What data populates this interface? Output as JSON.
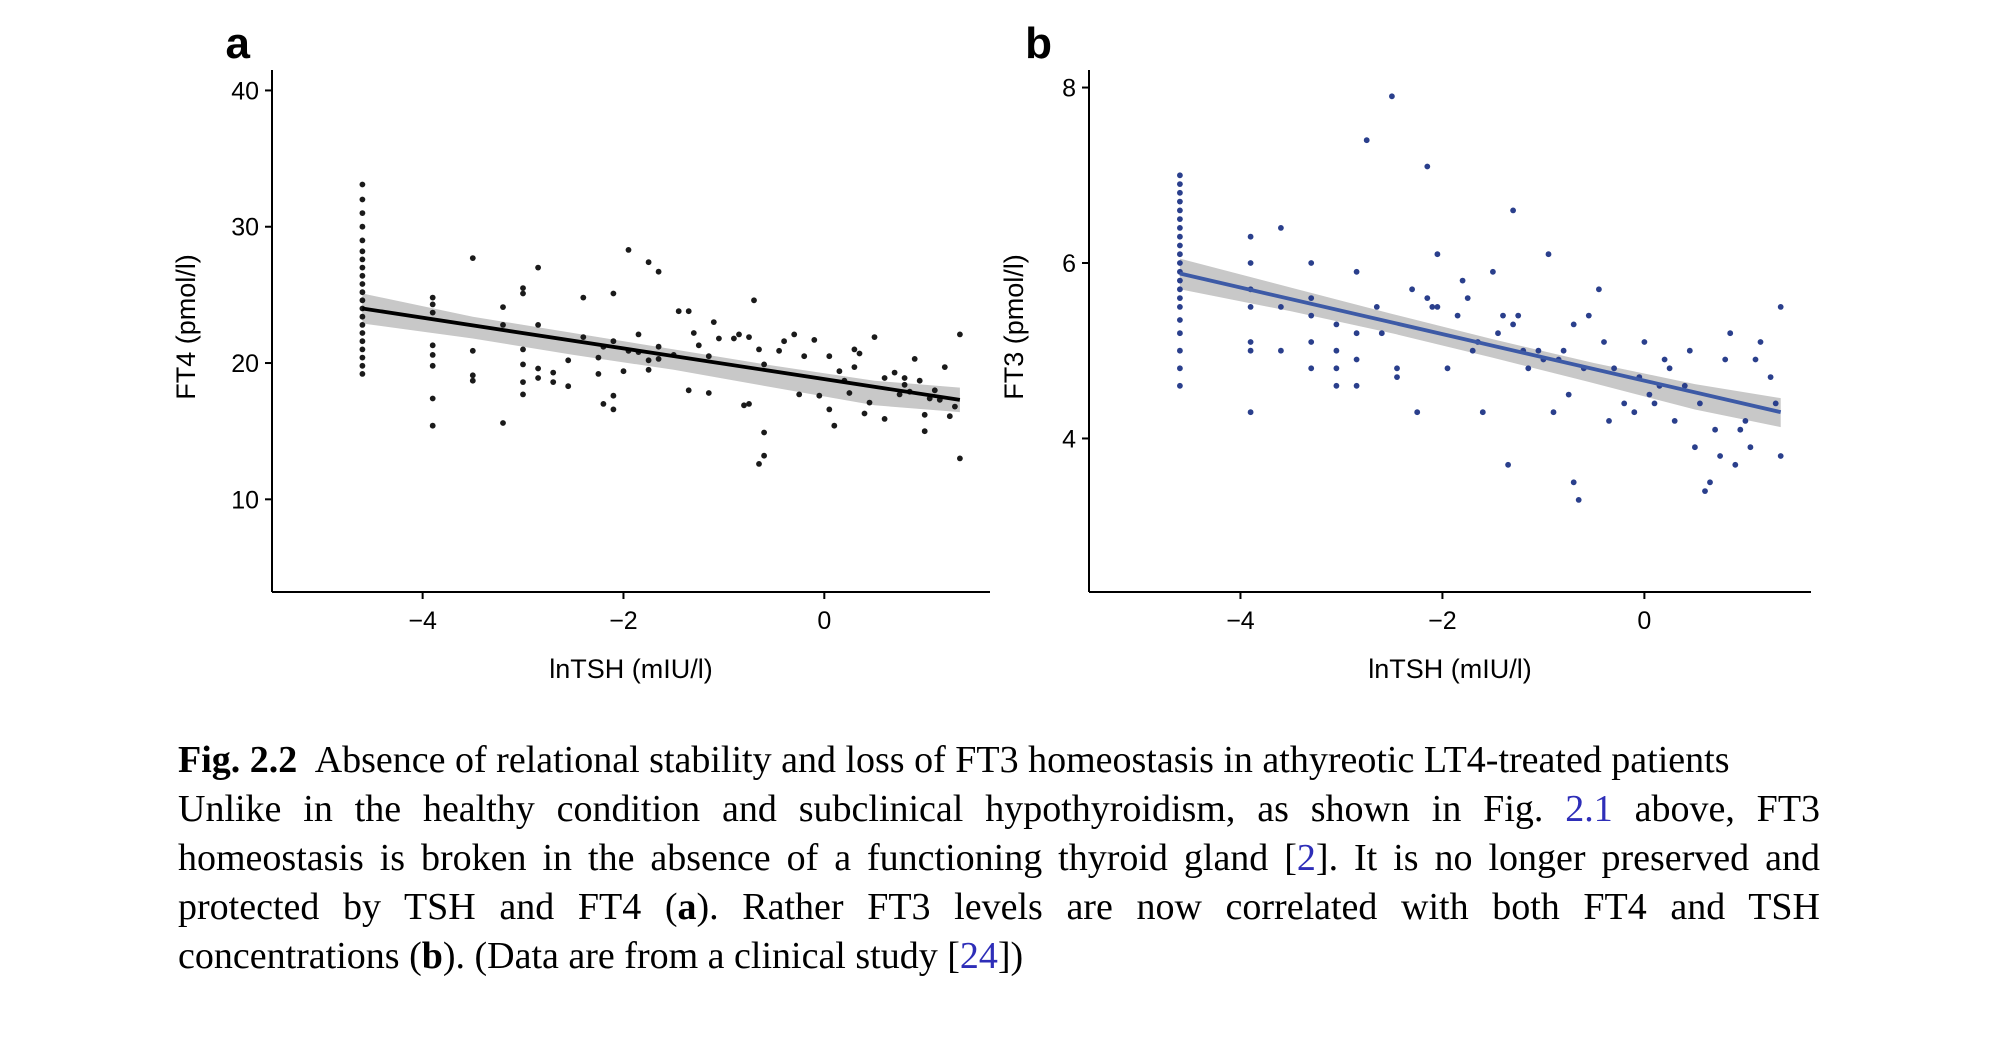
{
  "chart_data": [
    {
      "type": "scatter",
      "panel_label": "a",
      "xlabel": "lnTSH (mIU/l)",
      "ylabel": "FT4 (pmol/l)",
      "xlim": [
        -5.5,
        1.65
      ],
      "ylim": [
        3.2,
        41.5
      ],
      "xticks": [
        -4,
        -2,
        0
      ],
      "yticks": [
        10,
        20,
        30,
        40
      ],
      "xtick_labels": [
        "−4",
        "−2",
        "0"
      ],
      "ytick_labels": [
        "10",
        "20",
        "30",
        "40"
      ],
      "grid": false,
      "legend": "none",
      "point_color": "#1a1a1a",
      "line_color": "#000000",
      "band_color": "#c8c8c8",
      "trend_line": {
        "x": [
          -4.6,
          1.35
        ],
        "y": [
          24.0,
          17.3
        ]
      },
      "confidence_band": {
        "x": [
          -4.6,
          -3.5,
          -2.5,
          -1.5,
          -0.5,
          0.5,
          1.35
        ],
        "upper": [
          25.1,
          23.4,
          22.2,
          21.0,
          19.8,
          18.7,
          18.2
        ],
        "lower": [
          22.9,
          21.8,
          20.6,
          19.5,
          18.2,
          16.9,
          16.4
        ]
      },
      "points": [
        [
          -4.6,
          19.2
        ],
        [
          -4.6,
          19.8
        ],
        [
          -4.6,
          20.4
        ],
        [
          -4.6,
          21.0
        ],
        [
          -4.6,
          21.6
        ],
        [
          -4.6,
          22.2
        ],
        [
          -4.6,
          22.8
        ],
        [
          -4.6,
          23.4
        ],
        [
          -4.6,
          24.0
        ],
        [
          -4.6,
          24.6
        ],
        [
          -4.6,
          25.2
        ],
        [
          -4.6,
          25.8
        ],
        [
          -4.6,
          26.4
        ],
        [
          -4.6,
          27.0
        ],
        [
          -4.6,
          27.6
        ],
        [
          -4.6,
          28.2
        ],
        [
          -4.6,
          29.0
        ],
        [
          -4.6,
          30.0
        ],
        [
          -4.6,
          31.0
        ],
        [
          -4.6,
          32.0
        ],
        [
          -4.6,
          33.1
        ],
        [
          -3.9,
          15.4
        ],
        [
          -3.9,
          17.4
        ],
        [
          -3.9,
          19.8
        ],
        [
          -3.9,
          20.6
        ],
        [
          -3.9,
          21.3
        ],
        [
          -3.9,
          23.7
        ],
        [
          -3.9,
          24.3
        ],
        [
          -3.9,
          24.8
        ],
        [
          -3.5,
          27.7
        ],
        [
          -3.5,
          18.7
        ],
        [
          -3.5,
          19.1
        ],
        [
          -3.5,
          20.9
        ],
        [
          -3.2,
          15.6
        ],
        [
          -3.2,
          22.8
        ],
        [
          -3.2,
          24.1
        ],
        [
          -3.0,
          25.5
        ],
        [
          -3.0,
          25.1
        ],
        [
          -3.0,
          21.0
        ],
        [
          -3.0,
          19.9
        ],
        [
          -3.0,
          18.6
        ],
        [
          -3.0,
          17.7
        ],
        [
          -2.85,
          27.0
        ],
        [
          -2.85,
          22.8
        ],
        [
          -2.85,
          19.6
        ],
        [
          -2.85,
          18.9
        ],
        [
          -2.7,
          19.3
        ],
        [
          -2.7,
          18.6
        ],
        [
          -2.55,
          20.2
        ],
        [
          -2.55,
          18.3
        ],
        [
          -2.4,
          21.9
        ],
        [
          -2.4,
          24.8
        ],
        [
          -2.25,
          20.4
        ],
        [
          -2.25,
          19.2
        ],
        [
          -2.2,
          17.0
        ],
        [
          -2.2,
          21.2
        ],
        [
          -2.1,
          25.1
        ],
        [
          -2.1,
          16.6
        ],
        [
          -2.1,
          21.6
        ],
        [
          -2.1,
          17.6
        ],
        [
          -2.0,
          19.4
        ],
        [
          -1.95,
          28.3
        ],
        [
          -1.95,
          20.9
        ],
        [
          -1.85,
          20.8
        ],
        [
          -1.85,
          22.1
        ],
        [
          -1.75,
          27.4
        ],
        [
          -1.75,
          20.2
        ],
        [
          -1.75,
          19.5
        ],
        [
          -1.65,
          26.7
        ],
        [
          -1.65,
          21.2
        ],
        [
          -1.65,
          20.3
        ],
        [
          -1.5,
          20.6
        ],
        [
          -1.45,
          23.8
        ],
        [
          -1.35,
          23.8
        ],
        [
          -1.35,
          18.0
        ],
        [
          -1.3,
          22.2
        ],
        [
          -1.25,
          21.3
        ],
        [
          -1.15,
          20.5
        ],
        [
          -1.15,
          17.8
        ],
        [
          -1.1,
          23.0
        ],
        [
          -1.05,
          21.8
        ],
        [
          -0.9,
          21.8
        ],
        [
          -0.85,
          22.1
        ],
        [
          -0.8,
          16.9
        ],
        [
          -0.75,
          17.0
        ],
        [
          -0.75,
          21.9
        ],
        [
          -0.7,
          24.6
        ],
        [
          -0.65,
          21.0
        ],
        [
          -0.6,
          19.9
        ],
        [
          -0.6,
          14.9
        ],
        [
          -0.6,
          13.2
        ],
        [
          -0.65,
          12.6
        ],
        [
          -0.45,
          20.9
        ],
        [
          -0.4,
          21.6
        ],
        [
          -0.3,
          22.1
        ],
        [
          -0.25,
          17.7
        ],
        [
          -0.2,
          20.5
        ],
        [
          -0.1,
          21.7
        ],
        [
          -0.05,
          17.6
        ],
        [
          0.05,
          20.5
        ],
        [
          0.05,
          16.6
        ],
        [
          0.1,
          15.4
        ],
        [
          0.15,
          19.4
        ],
        [
          0.2,
          18.7
        ],
        [
          0.25,
          17.8
        ],
        [
          0.3,
          19.7
        ],
        [
          0.3,
          21.0
        ],
        [
          0.35,
          20.7
        ],
        [
          0.4,
          16.3
        ],
        [
          0.45,
          17.1
        ],
        [
          0.5,
          21.9
        ],
        [
          0.6,
          18.9
        ],
        [
          0.6,
          15.9
        ],
        [
          0.7,
          19.3
        ],
        [
          0.75,
          17.7
        ],
        [
          0.8,
          18.9
        ],
        [
          0.8,
          18.4
        ],
        [
          0.85,
          17.9
        ],
        [
          0.9,
          20.3
        ],
        [
          0.95,
          18.7
        ],
        [
          1.0,
          16.2
        ],
        [
          1.0,
          15.0
        ],
        [
          1.05,
          17.4
        ],
        [
          1.1,
          18.0
        ],
        [
          1.15,
          17.3
        ],
        [
          1.2,
          19.7
        ],
        [
          1.25,
          16.1
        ],
        [
          1.3,
          16.8
        ],
        [
          1.35,
          22.1
        ],
        [
          1.35,
          13.0
        ]
      ]
    },
    {
      "type": "scatter",
      "panel_label": "b",
      "xlabel": "lnTSH (mIU/l)",
      "ylabel": "FT3 (pmol/l)",
      "xlim": [
        -5.5,
        1.65
      ],
      "ylim": [
        2.25,
        8.2
      ],
      "xticks": [
        -4,
        -2,
        0
      ],
      "yticks": [
        4,
        6,
        8
      ],
      "xtick_labels": [
        "−4",
        "−2",
        "0"
      ],
      "ytick_labels": [
        "4",
        "6",
        "8"
      ],
      "grid": false,
      "legend": "none",
      "point_color": "#2a3f8c",
      "line_color": "#3d5aa6",
      "band_color": "#c8c8c8",
      "trend_line": {
        "x": [
          -4.6,
          1.35
        ],
        "y": [
          5.88,
          4.3
        ]
      },
      "confidence_band": {
        "x": [
          -4.6,
          -3.5,
          -2.5,
          -1.5,
          -0.5,
          0.5,
          1.35
        ],
        "upper": [
          6.05,
          5.72,
          5.42,
          5.13,
          4.86,
          4.62,
          4.46
        ],
        "lower": [
          5.7,
          5.45,
          5.2,
          4.92,
          4.63,
          4.33,
          4.13
        ]
      },
      "points": [
        [
          -4.6,
          4.6
        ],
        [
          -4.6,
          4.8
        ],
        [
          -4.6,
          5.0
        ],
        [
          -4.6,
          5.2
        ],
        [
          -4.6,
          5.35
        ],
        [
          -4.6,
          5.5
        ],
        [
          -4.6,
          5.6
        ],
        [
          -4.6,
          5.7
        ],
        [
          -4.6,
          5.8
        ],
        [
          -4.6,
          5.9
        ],
        [
          -4.6,
          6.0
        ],
        [
          -4.6,
          6.1
        ],
        [
          -4.6,
          6.2
        ],
        [
          -4.6,
          6.3
        ],
        [
          -4.6,
          6.4
        ],
        [
          -4.6,
          6.5
        ],
        [
          -4.6,
          6.6
        ],
        [
          -4.6,
          6.7
        ],
        [
          -4.6,
          6.8
        ],
        [
          -4.6,
          6.9
        ],
        [
          -4.6,
          7.0
        ],
        [
          -3.9,
          4.3
        ],
        [
          -3.9,
          5.0
        ],
        [
          -3.9,
          5.1
        ],
        [
          -3.9,
          5.5
        ],
        [
          -3.9,
          5.7
        ],
        [
          -3.9,
          6.0
        ],
        [
          -3.9,
          6.3
        ],
        [
          -3.6,
          6.4
        ],
        [
          -3.6,
          5.5
        ],
        [
          -3.6,
          5.0
        ],
        [
          -3.3,
          6.0
        ],
        [
          -3.3,
          5.6
        ],
        [
          -3.3,
          5.4
        ],
        [
          -3.3,
          5.1
        ],
        [
          -3.3,
          4.8
        ],
        [
          -3.05,
          5.3
        ],
        [
          -3.05,
          5.0
        ],
        [
          -3.05,
          4.8
        ],
        [
          -3.05,
          4.6
        ],
        [
          -2.85,
          5.9
        ],
        [
          -2.85,
          5.2
        ],
        [
          -2.85,
          4.9
        ],
        [
          -2.85,
          4.6
        ],
        [
          -2.75,
          7.4
        ],
        [
          -2.65,
          5.5
        ],
        [
          -2.6,
          5.2
        ],
        [
          -2.5,
          7.9
        ],
        [
          -2.45,
          4.8
        ],
        [
          -2.45,
          4.7
        ],
        [
          -2.3,
          5.7
        ],
        [
          -2.25,
          4.3
        ],
        [
          -2.15,
          7.1
        ],
        [
          -2.15,
          5.6
        ],
        [
          -2.1,
          5.5
        ],
        [
          -2.05,
          6.1
        ],
        [
          -2.05,
          5.5
        ],
        [
          -1.95,
          4.8
        ],
        [
          -1.85,
          5.4
        ],
        [
          -1.8,
          5.8
        ],
        [
          -1.75,
          5.6
        ],
        [
          -1.7,
          5.0
        ],
        [
          -1.65,
          5.1
        ],
        [
          -1.6,
          4.3
        ],
        [
          -1.5,
          5.9
        ],
        [
          -1.45,
          5.2
        ],
        [
          -1.4,
          5.4
        ],
        [
          -1.35,
          3.7
        ],
        [
          -1.3,
          5.3
        ],
        [
          -1.3,
          6.6
        ],
        [
          -1.25,
          5.4
        ],
        [
          -1.2,
          5.0
        ],
        [
          -1.15,
          4.8
        ],
        [
          -1.05,
          5.0
        ],
        [
          -1.0,
          4.9
        ],
        [
          -0.95,
          6.1
        ],
        [
          -0.9,
          4.3
        ],
        [
          -0.85,
          4.9
        ],
        [
          -0.8,
          5.0
        ],
        [
          -0.75,
          4.5
        ],
        [
          -0.7,
          5.3
        ],
        [
          -0.7,
          3.5
        ],
        [
          -0.65,
          3.3
        ],
        [
          -0.6,
          4.8
        ],
        [
          -0.55,
          5.4
        ],
        [
          -0.45,
          5.7
        ],
        [
          -0.4,
          5.1
        ],
        [
          -0.35,
          4.2
        ],
        [
          -0.3,
          4.8
        ],
        [
          -0.2,
          4.4
        ],
        [
          -0.1,
          4.3
        ],
        [
          -0.05,
          4.7
        ],
        [
          0.0,
          5.1
        ],
        [
          0.05,
          4.5
        ],
        [
          0.1,
          4.4
        ],
        [
          0.15,
          4.6
        ],
        [
          0.2,
          4.9
        ],
        [
          0.25,
          4.8
        ],
        [
          0.3,
          4.2
        ],
        [
          0.4,
          4.6
        ],
        [
          0.45,
          5.0
        ],
        [
          0.5,
          3.9
        ],
        [
          0.55,
          4.4
        ],
        [
          0.6,
          3.4
        ],
        [
          0.65,
          3.5
        ],
        [
          0.7,
          4.1
        ],
        [
          0.75,
          3.8
        ],
        [
          0.8,
          4.9
        ],
        [
          0.85,
          5.2
        ],
        [
          0.9,
          3.7
        ],
        [
          0.95,
          4.1
        ],
        [
          1.0,
          4.2
        ],
        [
          1.05,
          3.9
        ],
        [
          1.1,
          4.9
        ],
        [
          1.15,
          5.1
        ],
        [
          1.25,
          4.7
        ],
        [
          1.3,
          4.4
        ],
        [
          1.35,
          5.5
        ],
        [
          1.35,
          3.8
        ]
      ]
    }
  ],
  "caption": {
    "fig_label": "Fig. 2.2",
    "title": "Absence of relational stability and loss of FT3 homeostasis in athyreotic LT4-treated patients",
    "body_1": "Unlike in the healthy condition and subclinical hypothyroidism, as shown in Fig.",
    "ref_fig": "2.1",
    "body_2": "above, FT3 homeostasis is broken in the absence of a functioning thyroid gland [",
    "ref_1": "2",
    "body_3": "]. It is no longer preserved and protected by TSH and FT4 (",
    "bold_a": "a",
    "body_4": "). Rather FT3 levels are now correlated with both FT4 and TSH concentrations (",
    "bold_b": "b",
    "body_5": "). (Data are from a clinical study [",
    "ref_2": "24",
    "body_6": "])"
  }
}
